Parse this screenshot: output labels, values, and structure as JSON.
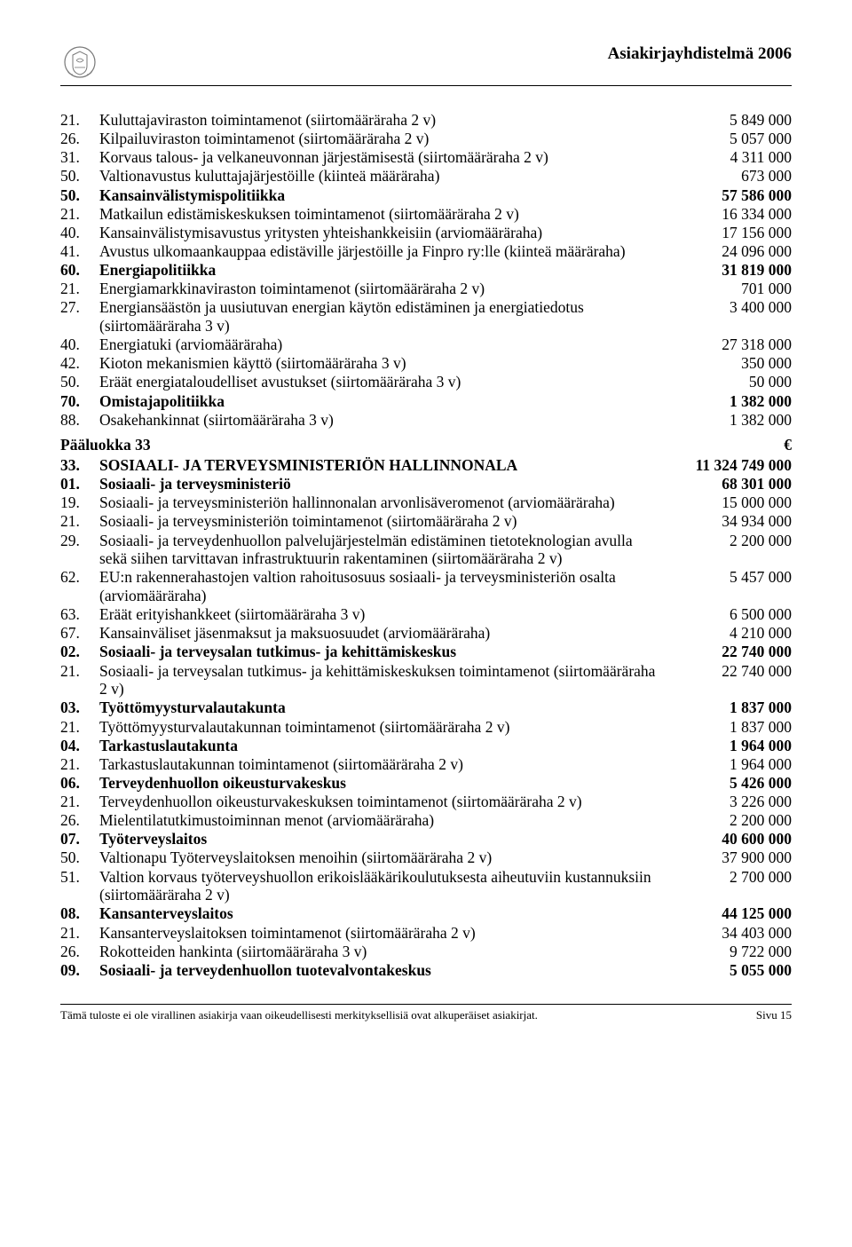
{
  "header": {
    "title": "Asiakirjayhdistelmä 2006"
  },
  "colors": {
    "text": "#000000",
    "background": "#ffffff",
    "rule": "#000000"
  },
  "typography": {
    "body_font": "Times New Roman",
    "body_size_pt": 13,
    "header_size_pt": 14,
    "footer_size_pt": 10
  },
  "rows": [
    {
      "num": "21.",
      "desc": "Kuluttajaviraston toimintamenot (siirtomääräraha 2 v)",
      "val": "5 849 000"
    },
    {
      "num": "26.",
      "desc": "Kilpailuviraston toimintamenot (siirtomääräraha 2 v)",
      "val": "5 057 000"
    },
    {
      "num": "31.",
      "desc": "Korvaus talous- ja velkaneuvonnan järjestämisestä (siirtomääräraha 2 v)",
      "val": "4 311 000"
    },
    {
      "num": "50.",
      "desc": "Valtionavustus kuluttajajärjestöille (kiinteä määräraha)",
      "val": "673 000"
    },
    {
      "num": "50.",
      "desc": "Kansainvälistymispolitiikka",
      "val": "57 586 000",
      "bold": true
    },
    {
      "num": "21.",
      "desc": "Matkailun edistämiskeskuksen toimintamenot (siirtomääräraha 2 v)",
      "val": "16 334 000"
    },
    {
      "num": "40.",
      "desc": "Kansainvälistymisavustus yritysten yhteishankkeisiin (arviomääräraha)",
      "val": "17 156 000"
    },
    {
      "num": "41.",
      "desc": "Avustus ulkomaankauppaa edistäville järjestöille ja Finpro ry:lle (kiinteä määräraha)",
      "val": "24 096 000"
    },
    {
      "num": "60.",
      "desc": "Energiapolitiikka",
      "val": "31 819 000",
      "bold": true
    },
    {
      "num": "21.",
      "desc": "Energiamarkkinaviraston toimintamenot (siirtomääräraha 2 v)",
      "val": "701 000"
    },
    {
      "num": "27.",
      "desc": "Energiansäästön ja uusiutuvan energian käytön edistäminen ja energiatiedotus (siirtomääräraha 3 v)",
      "val": "3 400 000"
    },
    {
      "num": "40.",
      "desc": "Energiatuki (arviomääräraha)",
      "val": "27 318 000"
    },
    {
      "num": "42.",
      "desc": "Kioton mekanismien käyttö (siirtomääräraha 3 v)",
      "val": "350 000"
    },
    {
      "num": "50.",
      "desc": "Eräät energiataloudelliset avustukset (siirtomääräraha 3 v)",
      "val": "50 000"
    },
    {
      "num": "70.",
      "desc": "Omistajapolitiikka",
      "val": "1 382 000",
      "bold": true
    },
    {
      "num": "88.",
      "desc": "Osakehankinnat (siirtomääräraha 3 v)",
      "val": "1 382 000"
    },
    {
      "type": "paaluokka",
      "num": "Pääluokka 33",
      "desc": "",
      "val": "€",
      "bold": true
    },
    {
      "num": "33.",
      "desc": "SOSIAALI- JA TERVEYSMINISTERIÖN HALLINNONALA",
      "val": "11 324 749 000",
      "bold": true
    },
    {
      "num": "01.",
      "desc": "Sosiaali- ja terveysministeriö",
      "val": "68 301 000",
      "bold": true
    },
    {
      "num": "19.",
      "desc": "Sosiaali- ja terveysministeriön hallinnonalan arvonlisäveromenot (arviomääräraha)",
      "val": "15 000 000"
    },
    {
      "num": "21.",
      "desc": "Sosiaali- ja terveysministeriön toimintamenot (siirtomääräraha 2 v)",
      "val": "34 934 000"
    },
    {
      "num": "29.",
      "desc": "Sosiaali- ja terveydenhuollon palvelujärjestelmän edistäminen tietoteknologian avulla sekä siihen tarvittavan infrastruktuurin rakentaminen (siirtomääräraha 2 v)",
      "val": "2 200 000"
    },
    {
      "num": "62.",
      "desc": "EU:n rakennerahastojen valtion rahoitusosuus sosiaali- ja terveysministeriön osalta (arviomääräraha)",
      "val": "5 457 000"
    },
    {
      "num": "63.",
      "desc": "Eräät erityishankkeet (siirtomääräraha 3 v)",
      "val": "6 500 000"
    },
    {
      "num": "67.",
      "desc": "Kansainväliset jäsenmaksut ja maksuosuudet (arviomääräraha)",
      "val": "4 210 000"
    },
    {
      "num": "02.",
      "desc": "Sosiaali- ja terveysalan tutkimus- ja kehittämiskeskus",
      "val": "22 740 000",
      "bold": true
    },
    {
      "num": "21.",
      "desc": "Sosiaali- ja terveysalan tutkimus- ja kehittämiskeskuksen toimintamenot (siirtomääräraha 2 v)",
      "val": "22 740 000"
    },
    {
      "num": "03.",
      "desc": "Työttömyysturvalautakunta",
      "val": "1 837 000",
      "bold": true
    },
    {
      "num": "21.",
      "desc": "Työttömyysturvalautakunnan toimintamenot (siirtomääräraha 2 v)",
      "val": "1 837 000"
    },
    {
      "num": "04.",
      "desc": "Tarkastuslautakunta",
      "val": "1 964 000",
      "bold": true
    },
    {
      "num": "21.",
      "desc": "Tarkastuslautakunnan toimintamenot (siirtomääräraha 2 v)",
      "val": "1 964 000"
    },
    {
      "num": "06.",
      "desc": "Terveydenhuollon oikeusturvakeskus",
      "val": "5 426 000",
      "bold": true
    },
    {
      "num": "21.",
      "desc": "Terveydenhuollon oikeusturvakeskuksen toimintamenot (siirtomääräraha 2 v)",
      "val": "3 226 000"
    },
    {
      "num": "26.",
      "desc": "Mielentilatutkimustoiminnan menot (arviomääräraha)",
      "val": "2 200 000"
    },
    {
      "num": "07.",
      "desc": "Työterveyslaitos",
      "val": "40 600 000",
      "bold": true
    },
    {
      "num": "50.",
      "desc": "Valtionapu Työterveyslaitoksen menoihin (siirtomääräraha 2 v)",
      "val": "37 900 000"
    },
    {
      "num": "51.",
      "desc": "Valtion korvaus työterveyshuollon erikoislääkärikoulutuksesta aiheutuviin kustannuksiin (siirtomääräraha 2 v)",
      "val": "2 700 000"
    },
    {
      "num": "08.",
      "desc": "Kansanterveyslaitos",
      "val": "44 125 000",
      "bold": true
    },
    {
      "num": "21.",
      "desc": "Kansanterveyslaitoksen toimintamenot (siirtomääräraha 2 v)",
      "val": "34 403 000"
    },
    {
      "num": "26.",
      "desc": "Rokotteiden hankinta (siirtomääräraha 3 v)",
      "val": "9 722 000"
    },
    {
      "num": "09.",
      "desc": "Sosiaali- ja terveydenhuollon tuotevalvontakeskus",
      "val": "5 055 000",
      "bold": true
    }
  ],
  "footer": {
    "left": "Tämä tuloste ei ole virallinen asiakirja vaan oikeudellisesti merkityksellisiä ovat alkuperäiset asiakirjat.",
    "right": "Sivu 15"
  }
}
